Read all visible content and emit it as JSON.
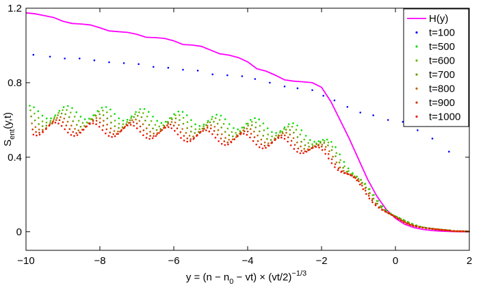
{
  "chart_data": {
    "type": "scatter",
    "title": "",
    "xlabel": "y = (n − n0 − vt) × (vt/2)^(−1/3)",
    "xlabel_parts": {
      "main": "y = (n − n",
      "sub": "0",
      "mid": " − vt) × (vt/2)",
      "sup": "−1/3"
    },
    "ylabel": "S_ent(y,t)",
    "ylabel_parts": {
      "main": "S",
      "sub": "ent",
      "rest": "(y,t)"
    },
    "xlim": [
      -10,
      2
    ],
    "ylim": [
      -0.1,
      1.2
    ],
    "xticks": [
      -10,
      -8,
      -6,
      -4,
      -2,
      0,
      2
    ],
    "xtick_labels": [
      "−10",
      "−8",
      "−6",
      "−4",
      "−2",
      "0",
      "2"
    ],
    "yticks": [
      0,
      0.4,
      0.8,
      1.2
    ],
    "ytick_labels": [
      "0",
      "0.4",
      "0.8",
      "1.2"
    ],
    "grid": false,
    "legend_position": "top-right",
    "series": [
      {
        "name": "H(y)",
        "kind": "line",
        "color": "#ff00ff",
        "x": [
          -10,
          -9.75,
          -9.5,
          -9.25,
          -9,
          -8.75,
          -8.5,
          -8.25,
          -8,
          -7.75,
          -7.5,
          -7.25,
          -7,
          -6.75,
          -6.5,
          -6.25,
          -6,
          -5.75,
          -5.5,
          -5.25,
          -5,
          -4.75,
          -4.5,
          -4.25,
          -4,
          -3.75,
          -3.5,
          -3.25,
          -3,
          -2.75,
          -2.5,
          -2.25,
          -2,
          -1.75,
          -1.5,
          -1.25,
          -1,
          -0.75,
          -0.5,
          -0.25,
          0,
          0.25,
          0.5,
          0.75,
          1,
          1.25,
          1.5,
          1.75,
          2
        ],
        "y": [
          1.175,
          1.17,
          1.16,
          1.15,
          1.13,
          1.118,
          1.115,
          1.11,
          1.095,
          1.078,
          1.074,
          1.07,
          1.06,
          1.044,
          1.042,
          1.038,
          1.025,
          1.005,
          1.002,
          0.995,
          0.975,
          0.955,
          0.948,
          0.935,
          0.912,
          0.875,
          0.862,
          0.84,
          0.815,
          0.808,
          0.805,
          0.8,
          0.775,
          0.7,
          0.6,
          0.5,
          0.39,
          0.28,
          0.19,
          0.12,
          0.072,
          0.04,
          0.022,
          0.012,
          0.006,
          0.003,
          0.001,
          0,
          0
        ]
      },
      {
        "name": "t=100",
        "kind": "dots",
        "color": "#0000ff",
        "x": [
          -9.8,
          -9.35,
          -8.95,
          -8.55,
          -8.15,
          -7.75,
          -7.35,
          -6.95,
          -6.55,
          -6.15,
          -5.75,
          -5.35,
          -4.95,
          -4.55,
          -4.15,
          -3.8,
          -3.4,
          -3.0,
          -2.65,
          -2.25,
          -1.95,
          -1.65,
          -1.3,
          -0.95,
          -0.6,
          -0.2,
          0.2,
          0.6,
          1.0,
          1.45
        ],
        "y": [
          0.95,
          0.94,
          0.93,
          0.93,
          0.92,
          0.91,
          0.905,
          0.9,
          0.885,
          0.88,
          0.87,
          0.865,
          0.845,
          0.84,
          0.835,
          0.82,
          0.8,
          0.78,
          0.77,
          0.76,
          0.73,
          0.705,
          0.67,
          0.64,
          0.625,
          0.6,
          0.59,
          0.545,
          0.5,
          0.43
        ]
      },
      {
        "name": "t=500",
        "kind": "dots",
        "color": "#00dd00",
        "points": "osc",
        "amp": 0.72,
        "x": [],
        "y": []
      },
      {
        "name": "t=600",
        "kind": "dots",
        "color": "#66bb00",
        "x": [],
        "y": []
      },
      {
        "name": "t=700",
        "kind": "dots",
        "color": "#669900",
        "x": [],
        "y": []
      },
      {
        "name": "t=800",
        "kind": "dots",
        "color": "#bb6600",
        "x": [],
        "y": []
      },
      {
        "name": "t=900",
        "kind": "dots",
        "color": "#cc3300",
        "x": [],
        "y": []
      },
      {
        "name": "t=1000",
        "kind": "dots",
        "color": "#ee1100",
        "x": [],
        "y": []
      }
    ]
  }
}
